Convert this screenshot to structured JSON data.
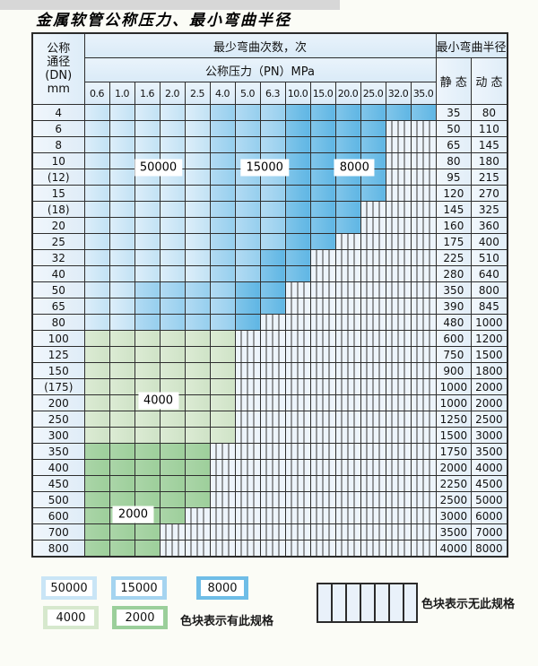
{
  "title": "金属软管公称压力、最小弯曲半径",
  "table": {
    "header": {
      "dn_lines": [
        "公称",
        "通径",
        "(DN)",
        "mm"
      ],
      "cycles_title": "最少弯曲次数，次",
      "pressure_title": "公称压力（PN）MPa",
      "pressures": [
        "0.6",
        "1.0",
        "1.6",
        "2.0",
        "2.5",
        "4.0",
        "5.0",
        "6.3",
        "10.0",
        "15.0",
        "20.0",
        "25.0",
        "32.0",
        "35.0"
      ],
      "radius_title": "最小弯曲半径",
      "static_label": "静 态",
      "dynamic_label": "动 态"
    },
    "zones": {
      "A": {
        "cycles": "50000",
        "colors": [
          "#ddeefa",
          "#c2e2f4"
        ]
      },
      "B": {
        "cycles": "15000",
        "colors": [
          "#b3dbf3",
          "#96cfee"
        ]
      },
      "C": {
        "cycles": "8000",
        "colors": [
          "#82c6ea",
          "#5fb6e4"
        ]
      },
      "D": {
        "cycles": "4000",
        "colors": [
          "#dcebd4",
          "#cfe3c7"
        ]
      },
      "E": {
        "cycles": "2000",
        "colors": [
          "#abd5a8",
          "#9dcf9b"
        ]
      },
      ".": {
        "cycles": "无此规格",
        "colors": null
      }
    },
    "rows": [
      {
        "dn": "4",
        "zones": "AAAAABBBCCCCCC",
        "static": "35",
        "dynamic": "80"
      },
      {
        "dn": "6",
        "zones": "AAAAABBBCCCC..",
        "static": "50",
        "dynamic": "110"
      },
      {
        "dn": "8",
        "zones": "AAAAABBBCCCC..",
        "static": "65",
        "dynamic": "145"
      },
      {
        "dn": "10",
        "zones": "AAAAABBBCCCC..",
        "static": "80",
        "dynamic": "180"
      },
      {
        "dn": "(12)",
        "zones": "AAAAABBBCCCC..",
        "static": "95",
        "dynamic": "215"
      },
      {
        "dn": "15",
        "zones": "AAAAABBBCCCC..",
        "static": "120",
        "dynamic": "270"
      },
      {
        "dn": "(18)",
        "zones": "AAAAABBBCCC...",
        "static": "145",
        "dynamic": "325"
      },
      {
        "dn": "20",
        "zones": "AAAAABBBCCC...",
        "static": "160",
        "dynamic": "360"
      },
      {
        "dn": "25",
        "zones": "AAAAABBBCC....",
        "static": "175",
        "dynamic": "400"
      },
      {
        "dn": "32",
        "zones": "AAAAABBCC.....",
        "static": "225",
        "dynamic": "510"
      },
      {
        "dn": "40",
        "zones": "AAAAABBCC.....",
        "static": "280",
        "dynamic": "640"
      },
      {
        "dn": "50",
        "zones": "AABBBBCC......",
        "static": "350",
        "dynamic": "800"
      },
      {
        "dn": "65",
        "zones": "AABBBBCC......",
        "static": "390",
        "dynamic": "845"
      },
      {
        "dn": "80",
        "zones": "AABBBBC.......",
        "static": "480",
        "dynamic": "1000"
      },
      {
        "dn": "100",
        "zones": "DDDDDD........",
        "static": "600",
        "dynamic": "1200"
      },
      {
        "dn": "125",
        "zones": "DDDDDD........",
        "static": "750",
        "dynamic": "1500"
      },
      {
        "dn": "150",
        "zones": "DDDDDD........",
        "static": "900",
        "dynamic": "1800"
      },
      {
        "dn": "(175)",
        "zones": "DDDDDD........",
        "static": "1000",
        "dynamic": "2000"
      },
      {
        "dn": "200",
        "zones": "DDDDDD........",
        "static": "1000",
        "dynamic": "2000"
      },
      {
        "dn": "250",
        "zones": "DDDDDD........",
        "static": "1250",
        "dynamic": "2500"
      },
      {
        "dn": "300",
        "zones": "DDDDDD........",
        "static": "1500",
        "dynamic": "3000"
      },
      {
        "dn": "350",
        "zones": "EEEEE.........",
        "static": "1750",
        "dynamic": "3500"
      },
      {
        "dn": "400",
        "zones": "EEEEE.........",
        "static": "2000",
        "dynamic": "4000"
      },
      {
        "dn": "450",
        "zones": "EEEEE.........",
        "static": "2250",
        "dynamic": "4500"
      },
      {
        "dn": "500",
        "zones": "EEEEE.........",
        "static": "2500",
        "dynamic": "5000"
      },
      {
        "dn": "600",
        "zones": "EEEE..........",
        "static": "3000",
        "dynamic": "6000"
      },
      {
        "dn": "700",
        "zones": "EEE...........",
        "static": "3500",
        "dynamic": "7000"
      },
      {
        "dn": "800",
        "zones": "EEE...........",
        "static": "4000",
        "dynamic": "8000"
      }
    ],
    "overlay_labels": [
      {
        "text": "50000",
        "col": 2.85,
        "row": 3.8
      },
      {
        "text": "15000",
        "col": 7.0,
        "row": 3.8
      },
      {
        "text": "8000",
        "col": 10.5,
        "row": 3.8
      },
      {
        "text": "4000",
        "col": 2.85,
        "row": 18.2
      },
      {
        "text": "2000",
        "col": 1.87,
        "row": 25.2
      }
    ]
  },
  "legend": {
    "has_spec_items": [
      {
        "value": "50000",
        "color": "#c9e5f6"
      },
      {
        "value": "15000",
        "color": "#a5d4f0"
      },
      {
        "value": "8000",
        "color": "#6fbde7"
      },
      {
        "value": "4000",
        "color": "#d6e8cd"
      },
      {
        "value": "2000",
        "color": "#9bcf9b"
      }
    ],
    "has_spec_text": "色块表示有此规格",
    "no_spec_text": "色块表示无此规格"
  }
}
